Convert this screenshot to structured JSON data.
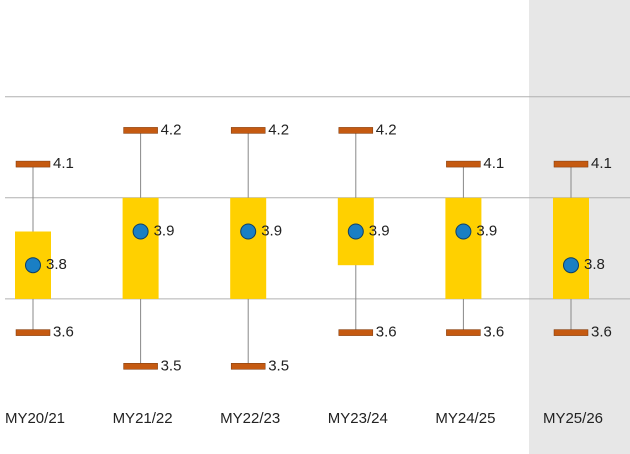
{
  "chart_data": {
    "type": "range-box",
    "categories": [
      "MY20/21",
      "MY21/22",
      "MY22/23",
      "MY23/24",
      "MY24/25",
      "MY25/26"
    ],
    "high": [
      4.1,
      4.2,
      4.2,
      4.2,
      4.1,
      4.1
    ],
    "low": [
      3.6,
      3.5,
      3.5,
      3.6,
      3.6,
      3.6
    ],
    "box_top": [
      3.9,
      4.0,
      4.0,
      4.0,
      4.0,
      4.0
    ],
    "box_bottom": [
      3.7,
      3.7,
      3.7,
      3.8,
      3.7,
      3.7
    ],
    "mean": [
      3.8,
      3.9,
      3.9,
      3.9,
      3.9,
      3.8
    ],
    "ylim": [
      3.4,
      4.4
    ],
    "yticks": [
      3.7,
      4.0,
      4.3
    ],
    "grid": true,
    "highlight_index": 5,
    "box_color": "#ffd000",
    "range_color": "#c55a11",
    "mean_color": "#1a7fc4"
  }
}
